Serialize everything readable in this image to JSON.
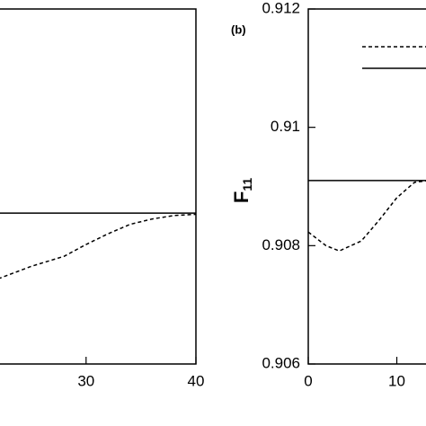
{
  "chart_data": [
    {
      "type": "line",
      "x": [
        22,
        25,
        28,
        30,
        32,
        34,
        36,
        38,
        40
      ],
      "series": [
        {
          "style": "solid",
          "color": "#000000",
          "values": [
            0.90855,
            0.90855,
            0.90855,
            0.90855,
            0.90855,
            0.90855,
            0.90855,
            0.90855,
            0.90855
          ]
        },
        {
          "style": "dashed",
          "color": "#000000",
          "values": [
            0.90744,
            0.90765,
            0.90782,
            0.90802,
            0.9082,
            0.90836,
            0.90845,
            0.90851,
            0.90853
          ]
        }
      ],
      "xlim": [
        22,
        40
      ],
      "xticks": [
        30,
        40
      ],
      "ylim": [
        0.906,
        0.912
      ]
    },
    {
      "type": "line",
      "panel_label": "(b)",
      "y_label": {
        "main": "F",
        "sub": "11"
      },
      "x": [
        0,
        2,
        3.5,
        6,
        8,
        10,
        12,
        13.5
      ],
      "series": [
        {
          "style": "dashed",
          "color": "#000000",
          "values": [
            0.90823,
            0.908,
            0.90791,
            0.90808,
            0.90843,
            0.90881,
            0.90907,
            0.9091
          ]
        },
        {
          "style": "solid",
          "color": "#000000",
          "values": [
            0.9091,
            0.9091,
            0.9091,
            0.9091,
            0.9091,
            0.9091,
            0.9091,
            0.9091
          ]
        }
      ],
      "xlim": [
        0,
        13.5
      ],
      "xticks": [
        0,
        10
      ],
      "ylim": [
        0.906,
        0.912
      ],
      "yticks": [
        0.906,
        0.908,
        0.91,
        0.912
      ],
      "legend": "top-right"
    }
  ]
}
